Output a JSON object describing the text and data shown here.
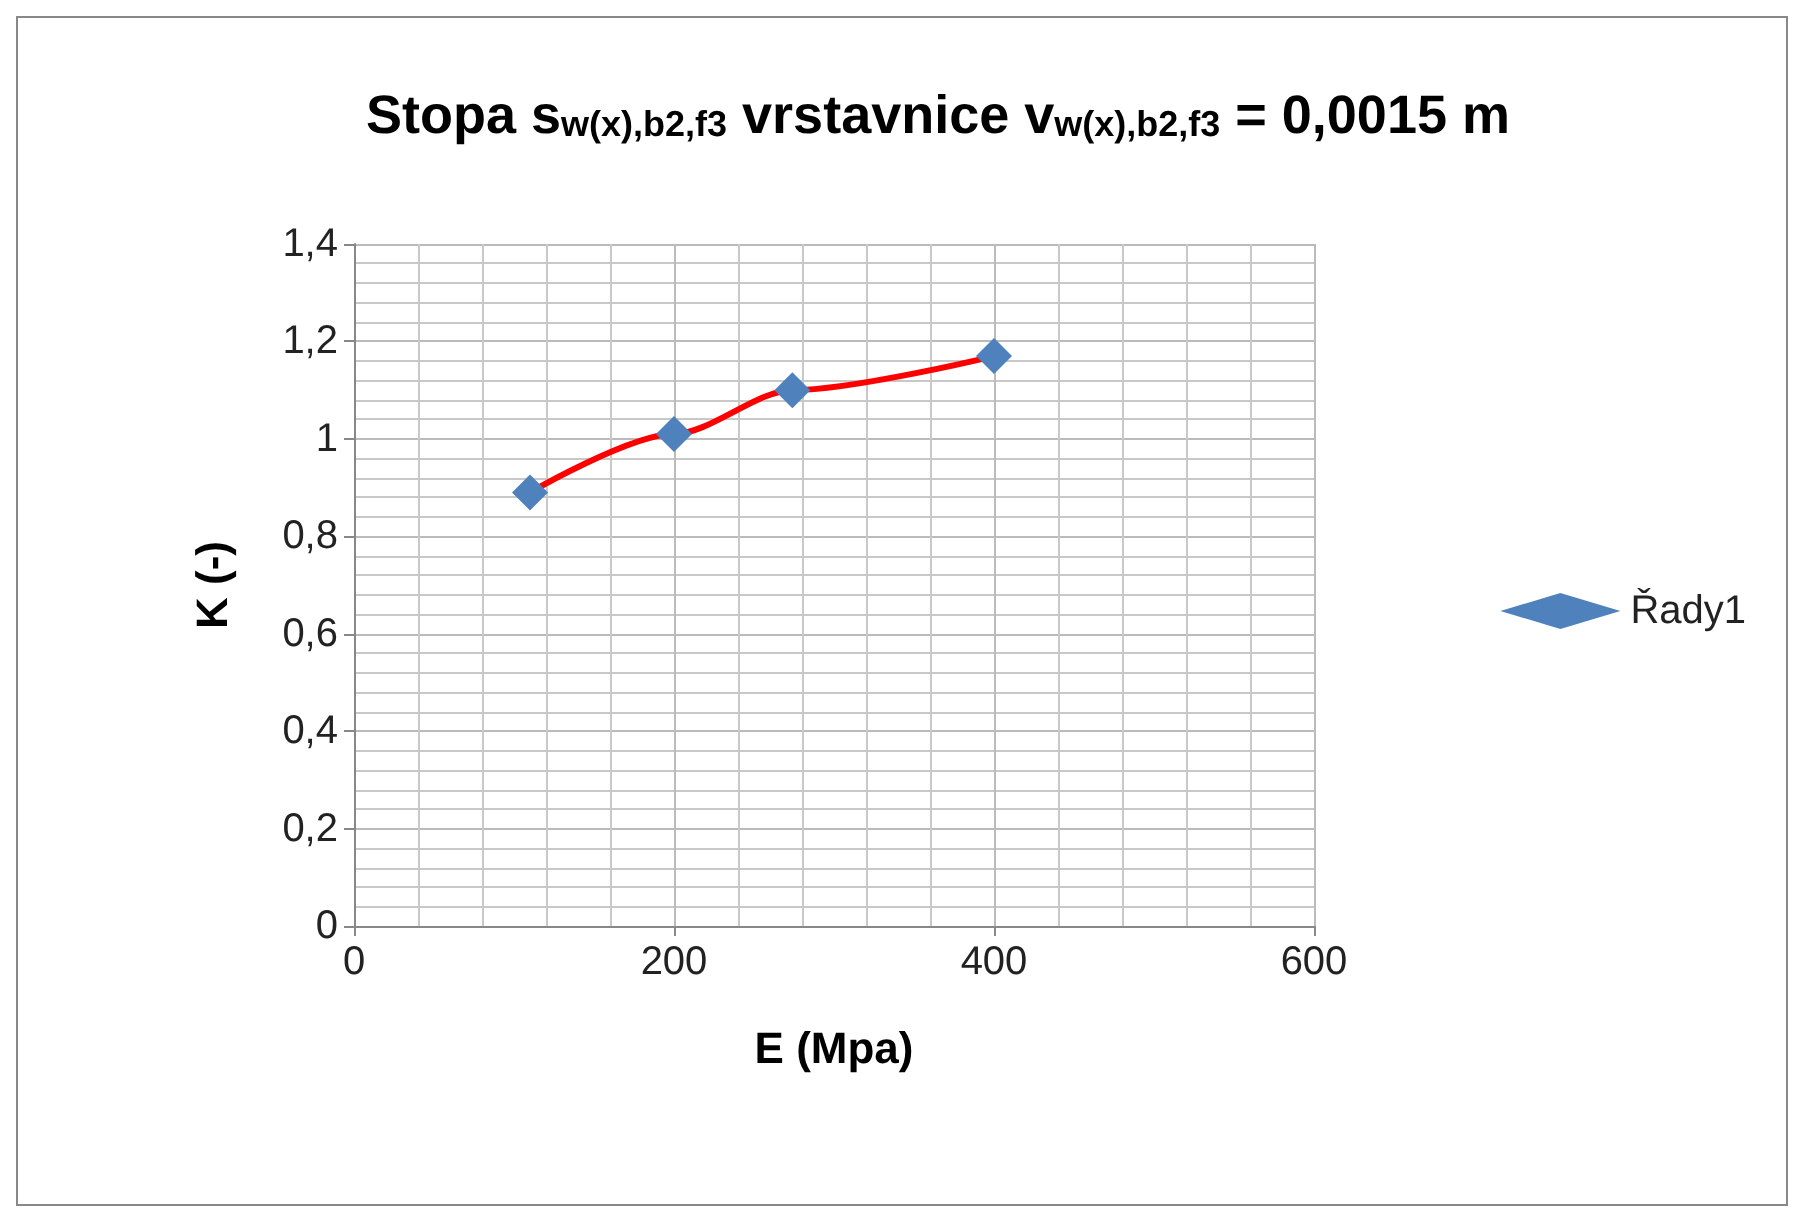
{
  "chart_data": {
    "type": "line",
    "title": "Stopa s$_{w(x),b2,f3}$ vrstavnice v$_{w(x),b2,f3}$ = 0,0015 m",
    "xlabel": "E (Mpa)",
    "ylabel": "K (-)",
    "x": [
      110,
      200,
      274,
      400
    ],
    "series": [
      {
        "name": "Řady1",
        "color": "#ff0000",
        "colors": [
          "#4f81bd",
          "#4f81bd",
          "#4f81bd",
          "#4f81bd"
        ],
        "values": [
          0.89,
          1.01,
          1.1,
          1.17
        ]
      }
    ],
    "xlim": [
      0,
      600
    ],
    "xticks": [
      0,
      200,
      400,
      600
    ],
    "ylim": [
      0,
      1.4
    ],
    "yticks": [
      0,
      {
        "value": 0.2,
        "label": "0,2"
      },
      {
        "value": 0.4,
        "label": "0,4"
      },
      {
        "value": 0.6,
        "label": "0,6"
      },
      {
        "value": 0.8,
        "label": "0,8"
      },
      1,
      {
        "value": 1.2,
        "label": "1,2"
      },
      {
        "value": 1.4,
        "label": "1,4"
      }
    ],
    "grid": true,
    "legend": "right",
    "marker": "diamond",
    "line_style": "solid"
  }
}
